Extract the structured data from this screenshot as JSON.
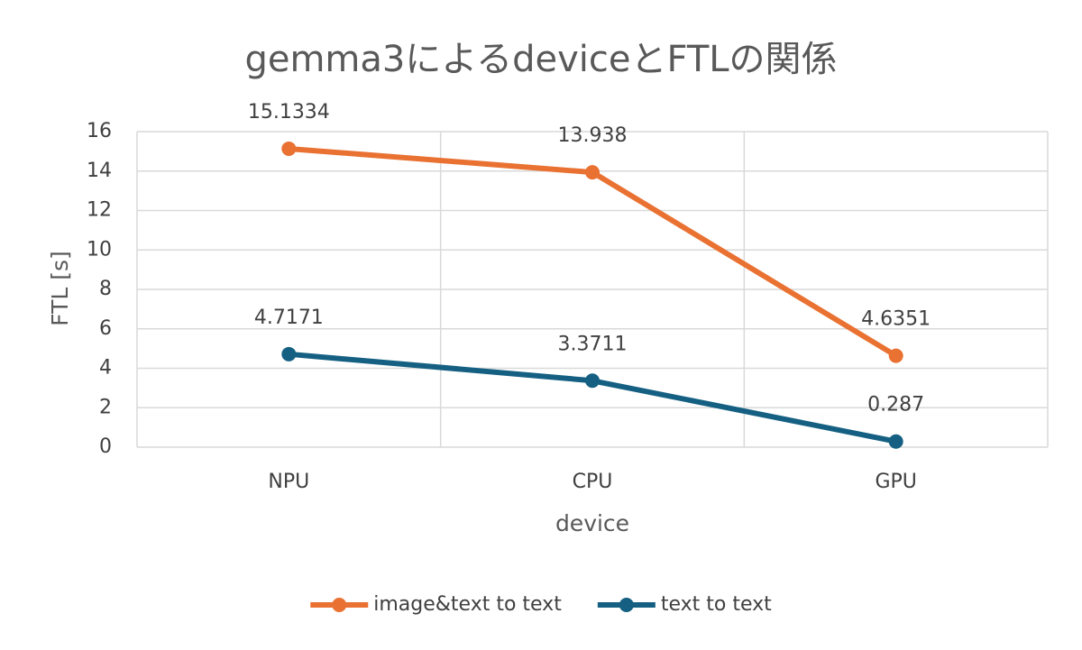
{
  "chart_data": {
    "type": "line",
    "title": "gemma3によるdeviceとFTLの関係",
    "x_label": "device",
    "y_label": "FTL [s]",
    "categories": [
      "NPU",
      "CPU",
      "GPU"
    ],
    "series": [
      {
        "name": "image&text to text",
        "color": "#E97132",
        "values": [
          15.1334,
          13.938,
          4.6351
        ]
      },
      {
        "name": "text to text",
        "color": "#156082",
        "values": [
          4.7171,
          3.3711,
          0.287
        ]
      }
    ],
    "ylim": [
      0,
      16
    ],
    "yticks": [
      0,
      2,
      4,
      6,
      8,
      10,
      12,
      14,
      16
    ],
    "grid": true,
    "legend": "bottom"
  }
}
